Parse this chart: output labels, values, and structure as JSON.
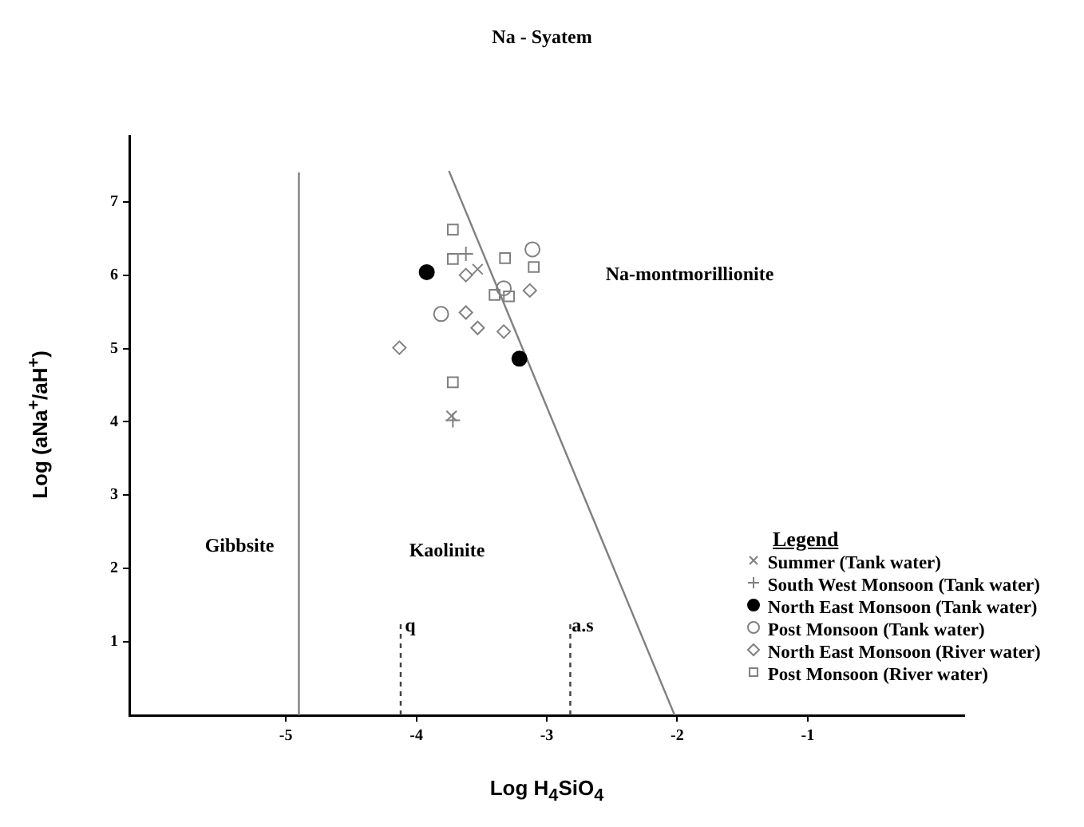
{
  "chart_data": {
    "type": "scatter",
    "title": "Na - Syatem",
    "xlabel": "Log H$_{4}$SiO$_{4}$",
    "ylabel": "Log (aNa$^{+}$/aH$^{+}$)",
    "legend_title": "Legend",
    "xlim": [
      -6.2,
      0.2
    ],
    "xticks": [
      -5,
      -4,
      -3,
      -2,
      -1
    ],
    "ylim": [
      0,
      7.9
    ],
    "yticks": [
      1,
      2,
      3,
      4,
      5,
      6,
      7
    ],
    "grid": false,
    "legend": "bottom right",
    "annotations": [
      "Gibbsite",
      "Kaolinite",
      "Na-montmorillionite",
      "q",
      "a.s"
    ],
    "series": [
      {
        "name": "Summer (Tank water)",
        "color": "#808080",
        "marker": "x",
        "x": [
          -3.53,
          -3.73
        ],
        "values": [
          6.08,
          4.08
        ]
      },
      {
        "name": "South West Monsoon (Tank water)",
        "color": "#808080",
        "marker": "cross",
        "x": [
          -3.62,
          -3.72
        ],
        "values": [
          6.29,
          4.02
        ]
      },
      {
        "name": "North East Monsoon (Tank water)",
        "color": "#000000",
        "marker": "circle",
        "x": [
          -3.92,
          -3.21
        ],
        "values": [
          6.04,
          4.86
        ]
      },
      {
        "name": "Post Monsoon (Tank water)",
        "color": "#808080",
        "marker": "circle",
        "x": [
          -3.11,
          -3.81,
          -3.33
        ],
        "values": [
          6.35,
          5.47,
          5.82
        ]
      },
      {
        "name": "North East Monsoon (River water)",
        "color": "#808080",
        "marker": "diamond",
        "x": [
          -3.62,
          -3.13,
          -3.62,
          -3.53,
          -3.33,
          -4.13
        ],
        "values": [
          6.0,
          5.79,
          5.49,
          5.28,
          5.23,
          5.01
        ]
      },
      {
        "name": "Post Monsoon (River water)",
        "color": "#808080",
        "marker": "square",
        "x": [
          -3.72,
          -3.72,
          -3.32,
          -3.1,
          -3.4,
          -3.29,
          -3.72
        ],
        "values": [
          6.62,
          6.22,
          6.23,
          6.11,
          5.73,
          5.71,
          4.54
        ]
      },
      {
        "type": "line",
        "color": "#808080",
        "marker": "none",
        "x": [
          -4.9,
          -4.9
        ],
        "values": [
          0,
          7.4
        ]
      },
      {
        "type": "line",
        "color": "#808080",
        "marker": "none",
        "x": [
          -3.75,
          -2.02
        ],
        "values": [
          7.42,
          0
        ]
      },
      {
        "type": "line",
        "color": "#404040",
        "marker": "none",
        "line_style": "dashed",
        "x": [
          -4.12,
          -4.12
        ],
        "values": [
          0,
          1.3
        ]
      },
      {
        "type": "line",
        "color": "#404040",
        "marker": "none",
        "line_style": "dashed",
        "x": [
          -2.82,
          -2.82
        ],
        "values": [
          0,
          1.3
        ]
      }
    ]
  }
}
